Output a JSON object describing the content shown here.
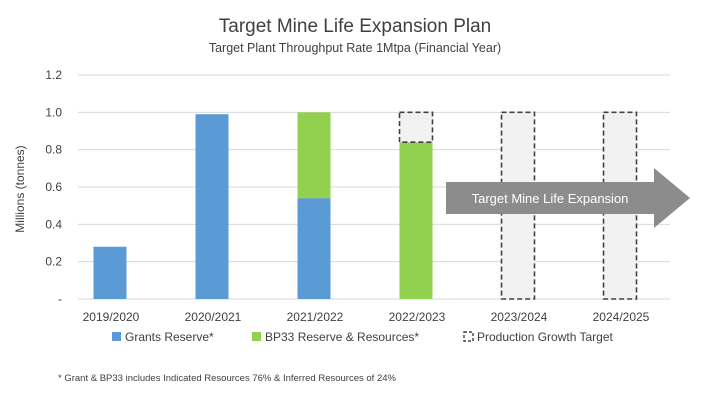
{
  "colors": {
    "grants": "#5b9bd5",
    "bp33": "#92d050",
    "target_fill": "#f2f2f2",
    "target_stroke": "#404040",
    "arrow": "#8c8c8c",
    "grid": "#d9d9d9",
    "text": "#404040"
  },
  "chart_data": {
    "type": "bar",
    "stacked": true,
    "title": "Target Mine Life Expansion Plan",
    "subtitle": "Target Plant Throughput Rate 1Mtpa (Financial Year)",
    "ylabel": "Millions (tonnes)",
    "xlabel": "",
    "ylim": [
      0,
      1.2
    ],
    "yticks": [
      0,
      0.2,
      0.4,
      0.6,
      0.8,
      1.0,
      1.2
    ],
    "ytick_labels": [
      "-",
      "0.2",
      "0.4",
      "0.6",
      "0.8",
      "1.0",
      "1.2"
    ],
    "grid": true,
    "legend_position": "bottom",
    "categories": [
      "2019/2020",
      "2020/2021",
      "2021/2022",
      "2022/2023",
      "2023/2024",
      "2024/2025"
    ],
    "series": [
      {
        "name": "Grants Reserve*",
        "color": "#5b9bd5",
        "values": [
          0.28,
          0.99,
          0.54,
          0,
          0,
          0
        ]
      },
      {
        "name": "BP33 Reserve & Resources*",
        "color": "#92d050",
        "values": [
          0,
          0,
          0.46,
          0.84,
          0,
          0
        ]
      },
      {
        "name": "Production Growth Target",
        "style": "dashed-outline",
        "values": [
          0,
          0,
          0,
          0.16,
          1.0,
          1.0
        ]
      }
    ],
    "annotation": "Target Mine Life Expansion",
    "footnote": "* Grant & BP33 includes Indicated Resources 76% & Inferred Resources of 24%"
  }
}
